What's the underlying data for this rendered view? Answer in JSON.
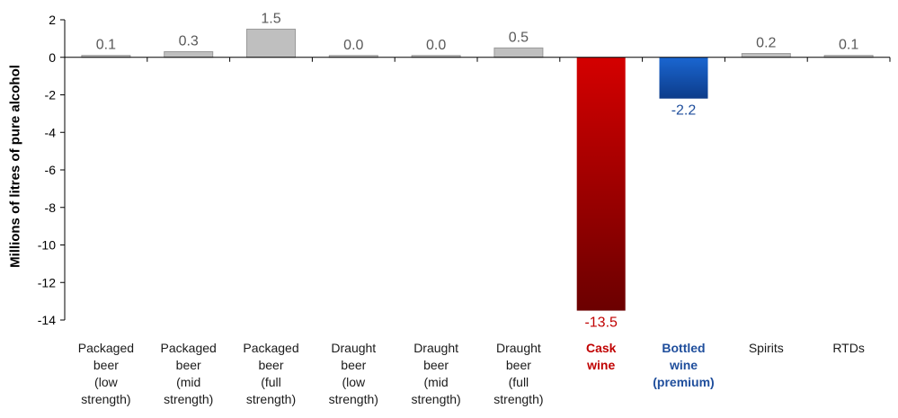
{
  "chart_data": {
    "type": "bar",
    "ylabel": "Millions of litres of pure alcohol",
    "xlabel": "",
    "ylim": [
      -14,
      2
    ],
    "yticks": [
      "2",
      "0",
      "-2",
      "-4",
      "-6",
      "-8",
      "-10",
      "-12",
      "-14"
    ],
    "grid": false,
    "categories": [
      "Packaged beer (low strength)",
      "Packaged beer (mid strength)",
      "Packaged beer (full strength)",
      "Draught beer (low strength)",
      "Draught beer (mid strength)",
      "Draught beer (full strength)",
      "Cask wine",
      "Bottled wine (premium)",
      "Spirits",
      "RTDs"
    ],
    "category_lines": [
      [
        "Packaged",
        "beer",
        "(low",
        "strength)"
      ],
      [
        "Packaged",
        "beer",
        "(mid",
        "strength)"
      ],
      [
        "Packaged",
        "beer",
        "(full",
        "strength)"
      ],
      [
        "Draught",
        "beer",
        "(low",
        "strength)"
      ],
      [
        "Draught",
        "beer",
        "(mid",
        "strength)"
      ],
      [
        "Draught",
        "beer",
        "(full",
        "strength)"
      ],
      [
        "Cask",
        "wine"
      ],
      [
        "Bottled",
        "wine",
        "(premium)"
      ],
      [
        "Spirits"
      ],
      [
        "RTDs"
      ]
    ],
    "values": [
      0.1,
      0.3,
      1.5,
      0.0,
      0.0,
      0.5,
      -13.5,
      -2.2,
      0.2,
      0.1
    ],
    "data_labels": [
      "0.1",
      "0.3",
      "1.5",
      "0.0",
      "0.0",
      "0.5",
      "-13.5",
      "-2.2",
      "0.2",
      "0.1"
    ],
    "highlight": {
      "Cask wine": "#c00000",
      "Bottled wine (premium)": "#1f4e9c"
    },
    "colors": {
      "default_bar": "#bfbfbf",
      "default_bar_stroke": "#9a9a9a",
      "default_label": "#595959",
      "cask_top": "#d40000",
      "cask_bottom": "#6b0000",
      "bottled_top": "#1a66d1",
      "bottled_bottom": "#0d3c8a",
      "axis": "#000000"
    }
  }
}
